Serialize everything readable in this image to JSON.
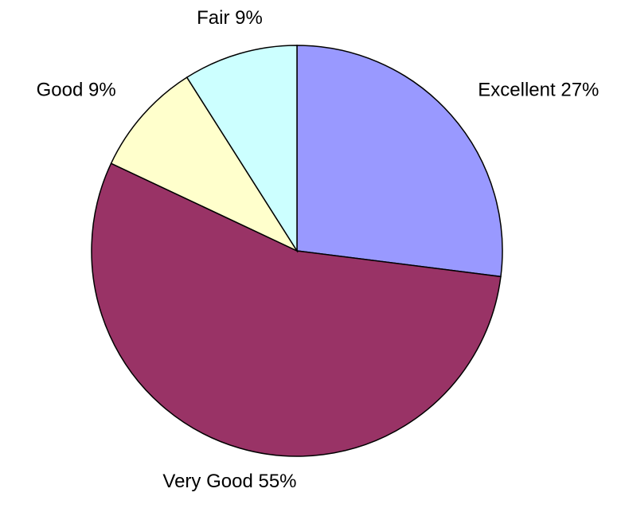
{
  "chart_data": {
    "type": "pie",
    "categories": [
      "Excellent",
      "Very Good",
      "Good",
      "Fair"
    ],
    "values": [
      27,
      55,
      9,
      9
    ],
    "value_labels": [
      "27%",
      "55%",
      "9%",
      "9%"
    ],
    "colors": [
      "#9999ff",
      "#993366",
      "#ffffcc",
      "#ccffff"
    ]
  }
}
